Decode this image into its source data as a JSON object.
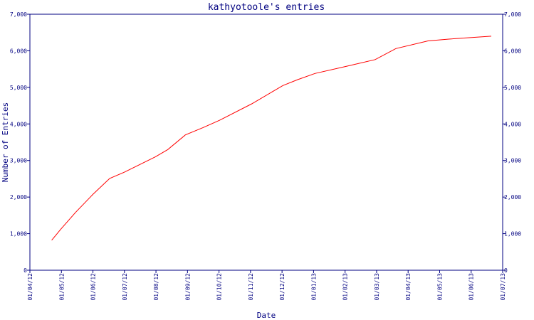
{
  "chart_data": {
    "type": "line",
    "title": "kathyotoole's entries",
    "xlabel": "Date",
    "ylabel": "Number of Entries",
    "x_ticks": [
      "01/04/12",
      "01/05/12",
      "01/06/12",
      "01/07/12",
      "01/08/12",
      "01/09/12",
      "01/10/12",
      "01/11/12",
      "01/12/12",
      "01/01/13",
      "01/02/13",
      "01/03/13",
      "01/04/13",
      "01/05/13",
      "01/06/13",
      "01/07/13"
    ],
    "y_ticks_left": [
      "0",
      "1,000",
      "2,000",
      "3,000",
      "4,000",
      "5,000",
      "6,000",
      "7,000"
    ],
    "y_ticks_right": [
      "0",
      "1,000",
      "2,000",
      "3,000",
      "4,000",
      "5,000",
      "6,000",
      "7,000"
    ],
    "ylim": [
      0,
      7000
    ],
    "xlim": [
      "2012-04-01",
      "2013-07-01"
    ],
    "grid": false,
    "series": [
      {
        "color": "#ff0000",
        "points": [
          {
            "x": "2012-04-22",
            "y": 820
          },
          {
            "x": "2012-05-01",
            "y": 1130
          },
          {
            "x": "2012-05-15",
            "y": 1580
          },
          {
            "x": "2012-06-01",
            "y": 2080
          },
          {
            "x": "2012-06-17",
            "y": 2510
          },
          {
            "x": "2012-07-01",
            "y": 2680
          },
          {
            "x": "2012-07-31",
            "y": 3100
          },
          {
            "x": "2012-08-12",
            "y": 3300
          },
          {
            "x": "2012-08-29",
            "y": 3700
          },
          {
            "x": "2012-09-15",
            "y": 3900
          },
          {
            "x": "2012-10-01",
            "y": 4100
          },
          {
            "x": "2012-11-01",
            "y": 4550
          },
          {
            "x": "2012-12-01",
            "y": 5050
          },
          {
            "x": "2012-12-15",
            "y": 5210
          },
          {
            "x": "2013-01-01",
            "y": 5380
          },
          {
            "x": "2013-02-01",
            "y": 5580
          },
          {
            "x": "2013-02-28",
            "y": 5760
          },
          {
            "x": "2013-03-20",
            "y": 6060
          },
          {
            "x": "2013-04-20",
            "y": 6270
          },
          {
            "x": "2013-05-10",
            "y": 6320
          },
          {
            "x": "2013-06-20",
            "y": 6400
          }
        ]
      }
    ]
  }
}
